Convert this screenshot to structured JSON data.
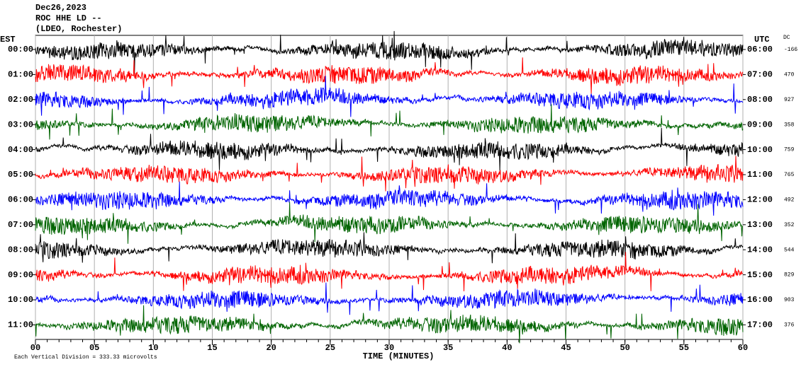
{
  "chart_data": {
    "type": "helicorder",
    "title_lines": [
      "Dec26,2023",
      "ROC HHE LD --",
      "(LDEO, Rochester)"
    ],
    "left_label": "EST",
    "right_label": "UTC",
    "dc_label": "DC",
    "rows": [
      {
        "est": "00:00",
        "utc": "06:00",
        "dc": -166,
        "color": "#000000"
      },
      {
        "est": "01:00",
        "utc": "07:00",
        "dc": 470,
        "color": "#ff0000"
      },
      {
        "est": "02:00",
        "utc": "08:00",
        "dc": 927,
        "color": "#0000ff"
      },
      {
        "est": "03:00",
        "utc": "09:00",
        "dc": 358,
        "color": "#006400"
      },
      {
        "est": "04:00",
        "utc": "10:00",
        "dc": 759,
        "color": "#000000"
      },
      {
        "est": "05:00",
        "utc": "11:00",
        "dc": 765,
        "color": "#ff0000"
      },
      {
        "est": "06:00",
        "utc": "12:00",
        "dc": 492,
        "color": "#0000ff"
      },
      {
        "est": "07:00",
        "utc": "13:00",
        "dc": 352,
        "color": "#006400"
      },
      {
        "est": "08:00",
        "utc": "14:00",
        "dc": 544,
        "color": "#000000"
      },
      {
        "est": "09:00",
        "utc": "15:00",
        "dc": 829,
        "color": "#ff0000"
      },
      {
        "est": "10:00",
        "utc": "16:00",
        "dc": 903,
        "color": "#0000ff"
      },
      {
        "est": "11:00",
        "utc": "17:00",
        "dc": 376,
        "color": "#006400"
      }
    ],
    "xlim": [
      0,
      60
    ],
    "xticks": [
      {
        "value": 0,
        "label": "00"
      },
      {
        "value": 5,
        "label": "05"
      },
      10,
      15,
      20,
      25,
      30,
      35,
      40,
      45,
      50,
      55,
      60
    ],
    "xlabel": "TIME (MINUTES)",
    "footer": "Each Vertical Division = 333.33 microvolts"
  }
}
